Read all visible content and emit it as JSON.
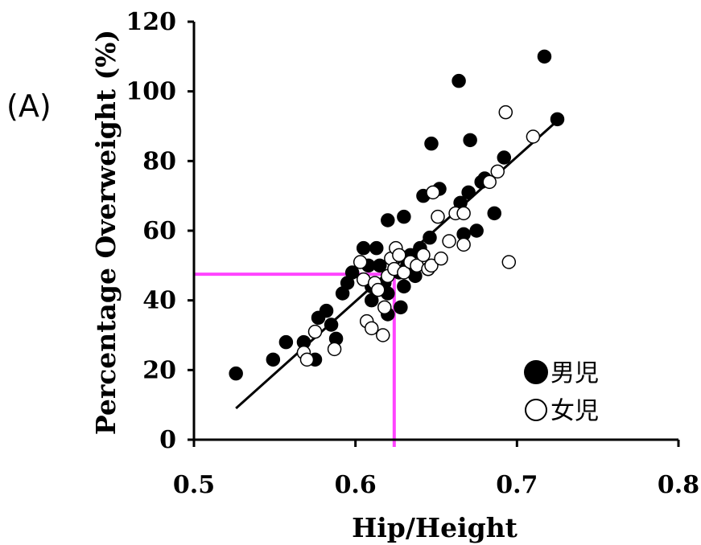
{
  "panel_label": "(A)",
  "chart_data": {
    "type": "scatter",
    "title": "",
    "xlabel": "Hip/Height",
    "ylabel": "Percentage Overweight (%)",
    "xlim": [
      0.5,
      0.8
    ],
    "ylim": [
      0,
      120
    ],
    "x_ticks": [
      "0.5",
      "0.6",
      "0.7",
      "0.8"
    ],
    "y_ticks": [
      "0",
      "20",
      "40",
      "60",
      "80",
      "100",
      "120"
    ],
    "grid": false,
    "legend_position": "bottom-right",
    "series": [
      {
        "name": "男児",
        "marker": "filled-circle",
        "color": "#000000",
        "points": [
          [
            0.526,
            19
          ],
          [
            0.549,
            23
          ],
          [
            0.557,
            28
          ],
          [
            0.568,
            28
          ],
          [
            0.575,
            23
          ],
          [
            0.577,
            35
          ],
          [
            0.582,
            37
          ],
          [
            0.585,
            33
          ],
          [
            0.588,
            29
          ],
          [
            0.592,
            42
          ],
          [
            0.595,
            45
          ],
          [
            0.598,
            48
          ],
          [
            0.605,
            55
          ],
          [
            0.608,
            50
          ],
          [
            0.61,
            44
          ],
          [
            0.61,
            40
          ],
          [
            0.613,
            55
          ],
          [
            0.615,
            50
          ],
          [
            0.618,
            45
          ],
          [
            0.62,
            42
          ],
          [
            0.62,
            36
          ],
          [
            0.62,
            63
          ],
          [
            0.627,
            48
          ],
          [
            0.628,
            38
          ],
          [
            0.63,
            64
          ],
          [
            0.63,
            44
          ],
          [
            0.632,
            50
          ],
          [
            0.634,
            53
          ],
          [
            0.637,
            47
          ],
          [
            0.64,
            55
          ],
          [
            0.642,
            70
          ],
          [
            0.645,
            49
          ],
          [
            0.646,
            58
          ],
          [
            0.647,
            85
          ],
          [
            0.652,
            72
          ],
          [
            0.664,
            103
          ],
          [
            0.665,
            68
          ],
          [
            0.667,
            59
          ],
          [
            0.67,
            71
          ],
          [
            0.671,
            86
          ],
          [
            0.675,
            60
          ],
          [
            0.678,
            74
          ],
          [
            0.68,
            75
          ],
          [
            0.686,
            65
          ],
          [
            0.692,
            81
          ],
          [
            0.717,
            110
          ],
          [
            0.725,
            92
          ]
        ]
      },
      {
        "name": "女児",
        "marker": "open-circle",
        "color": "#000000",
        "points": [
          [
            0.568,
            25
          ],
          [
            0.57,
            23
          ],
          [
            0.575,
            31
          ],
          [
            0.587,
            26
          ],
          [
            0.603,
            51
          ],
          [
            0.605,
            46
          ],
          [
            0.607,
            34
          ],
          [
            0.61,
            32
          ],
          [
            0.612,
            45
          ],
          [
            0.614,
            43
          ],
          [
            0.617,
            30
          ],
          [
            0.618,
            38
          ],
          [
            0.62,
            47
          ],
          [
            0.622,
            52
          ],
          [
            0.624,
            49
          ],
          [
            0.625,
            55
          ],
          [
            0.627,
            53
          ],
          [
            0.63,
            48
          ],
          [
            0.634,
            51
          ],
          [
            0.638,
            50
          ],
          [
            0.642,
            53
          ],
          [
            0.645,
            49
          ],
          [
            0.647,
            50
          ],
          [
            0.648,
            71
          ],
          [
            0.651,
            64
          ],
          [
            0.653,
            52
          ],
          [
            0.658,
            57
          ],
          [
            0.662,
            65
          ],
          [
            0.667,
            56
          ],
          [
            0.667,
            65
          ],
          [
            0.683,
            74
          ],
          [
            0.688,
            77
          ],
          [
            0.693,
            94
          ],
          [
            0.695,
            51
          ],
          [
            0.71,
            87
          ]
        ]
      }
    ],
    "trend_line": {
      "color": "#000000",
      "from": [
        0.526,
        9
      ],
      "to": [
        0.726,
        92
      ]
    },
    "reference_lines": {
      "color": "#ff44ff",
      "x": 0.624,
      "y": 47.5
    }
  }
}
